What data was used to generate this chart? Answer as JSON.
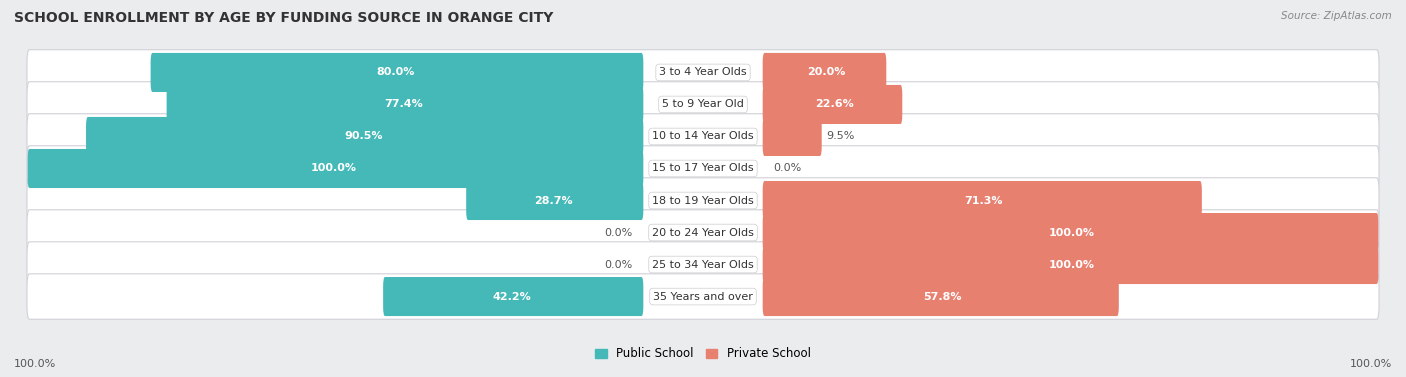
{
  "title": "SCHOOL ENROLLMENT BY AGE BY FUNDING SOURCE IN ORANGE CITY",
  "source": "Source: ZipAtlas.com",
  "categories": [
    "3 to 4 Year Olds",
    "5 to 9 Year Old",
    "10 to 14 Year Olds",
    "15 to 17 Year Olds",
    "18 to 19 Year Olds",
    "20 to 24 Year Olds",
    "25 to 34 Year Olds",
    "35 Years and over"
  ],
  "public_pct": [
    80.0,
    77.4,
    90.5,
    100.0,
    28.7,
    0.0,
    0.0,
    42.2
  ],
  "private_pct": [
    20.0,
    22.6,
    9.5,
    0.0,
    71.3,
    100.0,
    100.0,
    57.8
  ],
  "public_label": [
    "80.0%",
    "77.4%",
    "90.5%",
    "100.0%",
    "28.7%",
    "0.0%",
    "0.0%",
    "42.2%"
  ],
  "private_label": [
    "20.0%",
    "22.6%",
    "9.5%",
    "0.0%",
    "71.3%",
    "100.0%",
    "100.0%",
    "57.8%"
  ],
  "public_color": "#45b8b8",
  "private_color": "#e88070",
  "bg_color": "#eaecee",
  "row_bg_color": "#ffffff",
  "row_border_color": "#d0d0d8",
  "legend_public": "Public School",
  "legend_private": "Private School",
  "axis_label_left": "100.0%",
  "axis_label_right": "100.0%",
  "title_fontsize": 10,
  "label_fontsize": 8,
  "category_fontsize": 8
}
